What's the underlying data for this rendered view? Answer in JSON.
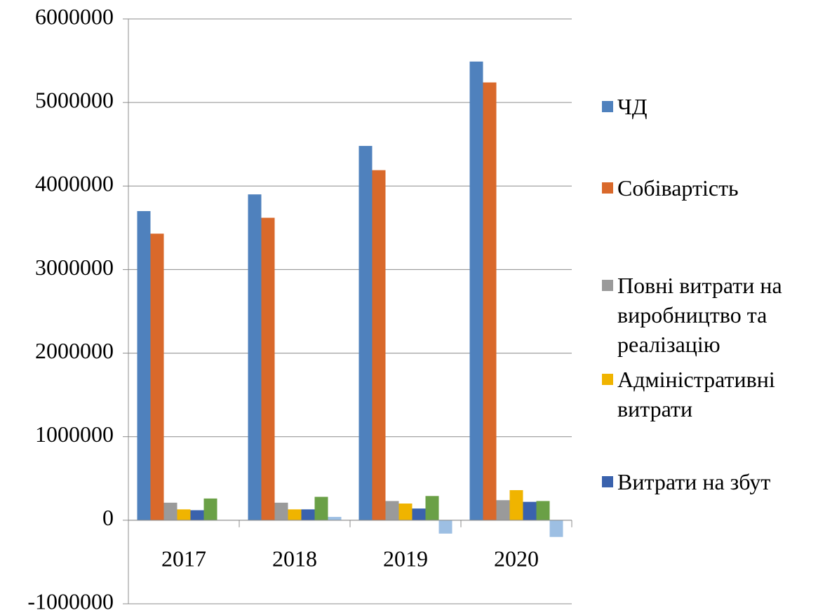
{
  "chart_data": {
    "type": "bar",
    "categories": [
      "2017",
      "2018",
      "2019",
      "2020"
    ],
    "series": [
      {
        "name": "ЧД",
        "color": "#4f81bd",
        "values": [
          3700000,
          3900000,
          4480000,
          5490000
        ]
      },
      {
        "name": "Собівартість",
        "color": "#d9692b",
        "values": [
          3430000,
          3620000,
          4190000,
          5240000
        ]
      },
      {
        "name": "Повні витрати на виробництво та реалізацію",
        "color": "#9a9a9a",
        "values": [
          210000,
          210000,
          230000,
          240000
        ]
      },
      {
        "name": "Адміністративні витрати",
        "color": "#f0b400",
        "values": [
          130000,
          130000,
          200000,
          360000
        ]
      },
      {
        "name": "Витрати на збут",
        "color": "#3a62ad",
        "values": [
          120000,
          130000,
          140000,
          220000
        ]
      },
      {
        "color": "#6aa046",
        "values": [
          260000,
          280000,
          290000,
          230000
        ]
      },
      {
        "color": "#9dbfe3",
        "values": [
          0,
          40000,
          -160000,
          -200000
        ]
      }
    ],
    "ylim": [
      -1000000,
      6000000
    ],
    "yticks": [
      -1000000,
      0,
      1000000,
      2000000,
      3000000,
      4000000,
      5000000,
      6000000
    ],
    "grid": true,
    "legend": "right"
  }
}
